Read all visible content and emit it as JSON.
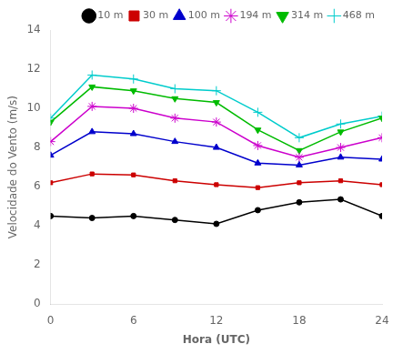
{
  "chart_data": {
    "type": "line",
    "xlabel": "Hora (UTC)",
    "ylabel": "Velocidade do Vento (m/s)",
    "x": [
      0,
      3,
      6,
      9,
      12,
      15,
      18,
      21,
      24
    ],
    "xlim": [
      0,
      24
    ],
    "xticks": [
      0,
      6,
      12,
      18,
      24
    ],
    "ylim": [
      0,
      14
    ],
    "yticks": [
      0,
      2,
      4,
      6,
      8,
      10,
      12,
      14
    ],
    "grid": false,
    "legend": "upper right",
    "series": [
      {
        "name": "10 m",
        "color": "#000000",
        "marker": "circle",
        "values": [
          4.5,
          4.4,
          4.5,
          4.3,
          4.1,
          4.8,
          5.2,
          5.35,
          4.5
        ]
      },
      {
        "name": "30 m",
        "color": "#cc0000",
        "marker": "square",
        "values": [
          6.2,
          6.65,
          6.6,
          6.3,
          6.1,
          5.95,
          6.2,
          6.3,
          6.1
        ]
      },
      {
        "name": "100 m",
        "color": "#0000cc",
        "marker": "triangle-up",
        "values": [
          7.6,
          8.8,
          8.7,
          8.3,
          8.0,
          7.2,
          7.1,
          7.5,
          7.4
        ]
      },
      {
        "name": "194 m",
        "color": "#cc00cc",
        "marker": "star",
        "values": [
          8.3,
          10.1,
          10.0,
          9.5,
          9.3,
          8.1,
          7.5,
          8.0,
          8.5
        ]
      },
      {
        "name": "314 m",
        "color": "#00bb00",
        "marker": "triangle-down",
        "values": [
          9.3,
          11.1,
          10.9,
          10.5,
          10.3,
          8.9,
          7.85,
          8.8,
          9.5
        ]
      },
      {
        "name": "468 m",
        "color": "#00cccc",
        "marker": "plus",
        "values": [
          9.5,
          11.7,
          11.5,
          11.0,
          10.9,
          9.8,
          8.5,
          9.2,
          9.6
        ]
      }
    ]
  }
}
